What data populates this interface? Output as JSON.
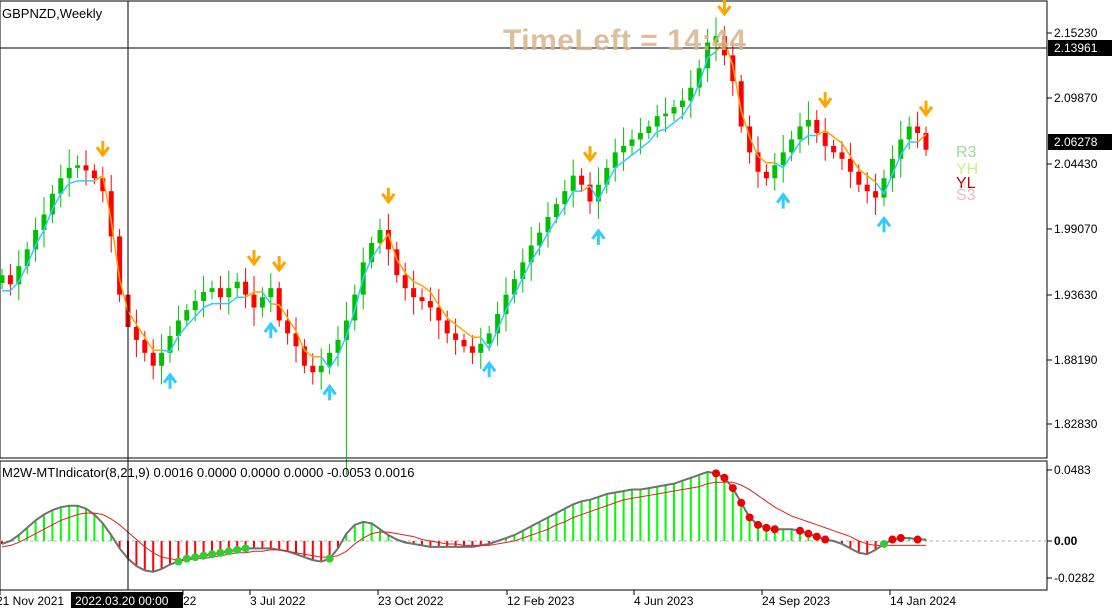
{
  "header": {
    "symbol_label": "GBPNZD,Weekly"
  },
  "overlay": {
    "time_left_label": "TimeLeft = 14:44"
  },
  "indicator": {
    "label": "M2W-MTIndicator(8,21,9) 0.0016 0.0000 0.0000 0.0000 -0.0053 0.0016"
  },
  "price_axis": {
    "ticks": [
      "2.15230",
      "2.09870",
      "2.04430",
      "1.99070",
      "1.93630",
      "1.88190",
      "1.82830"
    ],
    "crosshair_price": "2.13961",
    "current_price": "2.06278"
  },
  "indicator_axis": {
    "ticks": [
      "0.0483",
      "0.00",
      "-0.0282"
    ]
  },
  "time_axis": {
    "ticks": [
      "21 Nov 2021",
      "22",
      "3 Jul 2022",
      "23 Oct 2022",
      "12 Feb 2023",
      "4 Jun 2023",
      "24 Sep 2023",
      "14 Jan 2024"
    ],
    "crosshair_time": "2022.03.20 00:00"
  },
  "levels": [
    "R3",
    "YH",
    "YL",
    "S3"
  ],
  "colors": {
    "bull_candle": "#00c000",
    "bear_candle": "#ff0000",
    "up_trail": "#33ccff",
    "down_trail": "#ffa500",
    "hist_pos": "#00ff00",
    "hist_neg": "#ff0000",
    "timeleft": "#d6b58b"
  },
  "chart_data": [
    {
      "type": "candlestick",
      "title": "GBPNZD,Weekly",
      "ylim": [
        1.805,
        2.175
      ],
      "close_series": [
        1.965,
        1.958,
        1.972,
        1.985,
        2.0,
        2.012,
        2.028,
        2.04,
        2.048,
        2.05,
        2.046,
        2.04,
        2.03,
        1.995,
        1.95,
        1.925,
        1.915,
        1.905,
        1.895,
        1.905,
        1.918,
        1.93,
        1.938,
        1.945,
        1.952,
        1.955,
        1.948,
        1.955,
        1.96,
        1.95,
        1.94,
        1.948,
        1.955,
        1.93,
        1.92,
        1.91,
        1.895,
        1.89,
        1.895,
        1.905,
        1.915,
        1.93,
        1.95,
        1.975,
        1.99,
        2.0,
        1.985,
        1.965,
        1.955,
        1.948,
        1.945,
        1.94,
        1.93,
        1.92,
        1.915,
        1.91,
        1.905,
        1.912,
        1.92,
        1.935,
        1.95,
        1.962,
        1.975,
        1.988,
        1.998,
        2.01,
        2.02,
        2.03,
        2.042,
        2.035,
        2.022,
        2.035,
        2.048,
        2.06,
        2.065,
        2.07,
        2.075,
        2.08,
        2.088,
        2.09,
        2.095,
        2.1,
        2.11,
        2.125,
        2.145,
        2.15,
        2.135,
        2.115,
        2.08,
        2.06,
        2.045,
        2.04,
        2.05,
        2.06,
        2.07,
        2.08,
        2.085,
        2.075,
        2.065,
        2.06,
        2.055,
        2.045,
        2.035,
        2.03,
        2.025,
        2.04,
        2.055,
        2.07,
        2.08,
        2.075,
        2.062
      ]
    },
    {
      "type": "bar",
      "title": "M2W-MTIndicator(8,21,9)",
      "ylim": [
        -0.0282,
        0.0483
      ],
      "values": [
        -0.002,
        0.0,
        0.004,
        0.009,
        0.014,
        0.018,
        0.021,
        0.023,
        0.024,
        0.024,
        0.022,
        0.018,
        0.012,
        0.004,
        -0.005,
        -0.012,
        -0.017,
        -0.02,
        -0.021,
        -0.019,
        -0.016,
        -0.014,
        -0.012,
        -0.011,
        -0.01,
        -0.009,
        -0.008,
        -0.007,
        -0.006,
        -0.005,
        -0.005,
        -0.005,
        -0.005,
        -0.006,
        -0.007,
        -0.009,
        -0.011,
        -0.013,
        -0.014,
        -0.012,
        -0.005,
        0.005,
        0.011,
        0.013,
        0.012,
        0.008,
        0.004,
        0.001,
        -0.001,
        -0.002,
        -0.003,
        -0.004,
        -0.004,
        -0.004,
        -0.004,
        -0.004,
        -0.004,
        -0.003,
        -0.002,
        0.0,
        0.002,
        0.004,
        0.007,
        0.01,
        0.013,
        0.016,
        0.019,
        0.022,
        0.025,
        0.027,
        0.028,
        0.03,
        0.032,
        0.033,
        0.034,
        0.035,
        0.035,
        0.036,
        0.037,
        0.038,
        0.039,
        0.041,
        0.043,
        0.045,
        0.047,
        0.046,
        0.043,
        0.036,
        0.026,
        0.016,
        0.011,
        0.009,
        0.008,
        0.008,
        0.008,
        0.007,
        0.005,
        0.003,
        0.001,
        0.0,
        -0.002,
        -0.005,
        -0.008,
        -0.009,
        -0.006,
        -0.002,
        0.001,
        0.002,
        0.002,
        0.001,
        0.001
      ],
      "signal": [
        -0.004,
        -0.003,
        -0.001,
        0.002,
        0.005,
        0.008,
        0.011,
        0.014,
        0.016,
        0.018,
        0.019,
        0.019,
        0.018,
        0.015,
        0.011,
        0.006,
        0.001,
        -0.004,
        -0.008,
        -0.011,
        -0.012,
        -0.013,
        -0.013,
        -0.012,
        -0.012,
        -0.011,
        -0.01,
        -0.009,
        -0.008,
        -0.008,
        -0.007,
        -0.007,
        -0.006,
        -0.006,
        -0.007,
        -0.008,
        -0.009,
        -0.01,
        -0.011,
        -0.011,
        -0.01,
        -0.007,
        -0.002,
        0.002,
        0.005,
        0.006,
        0.006,
        0.005,
        0.004,
        0.003,
        0.001,
        0.0,
        -0.001,
        -0.002,
        -0.002,
        -0.003,
        -0.003,
        -0.003,
        -0.003,
        -0.002,
        -0.001,
        0.0,
        0.002,
        0.004,
        0.006,
        0.008,
        0.011,
        0.013,
        0.016,
        0.018,
        0.02,
        0.022,
        0.024,
        0.026,
        0.028,
        0.029,
        0.03,
        0.031,
        0.032,
        0.033,
        0.034,
        0.035,
        0.036,
        0.037,
        0.039,
        0.04,
        0.04,
        0.04,
        0.038,
        0.035,
        0.031,
        0.027,
        0.023,
        0.02,
        0.017,
        0.015,
        0.013,
        0.011,
        0.009,
        0.007,
        0.005,
        0.003,
        0.0,
        -0.002,
        -0.003,
        -0.003,
        -0.003,
        -0.003,
        -0.003,
        -0.003,
        -0.003
      ]
    }
  ]
}
